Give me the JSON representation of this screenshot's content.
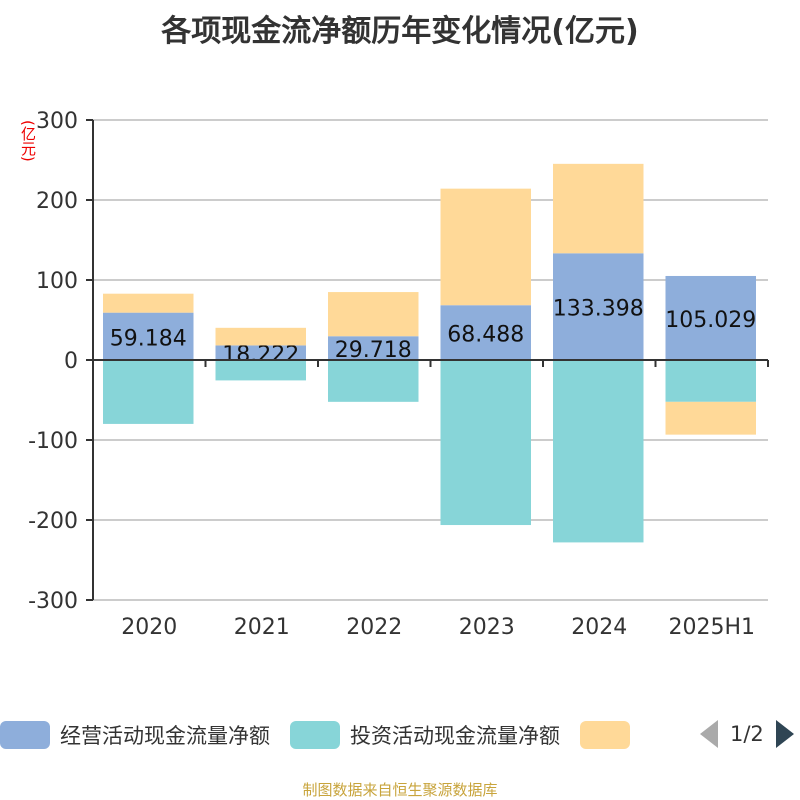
{
  "title": "各项现金流净额历年变化情况(亿元)",
  "footer": "制图数据来自恒生聚源数据库",
  "legend": {
    "page": "1/2"
  },
  "chart_data": {
    "type": "bar",
    "stacked": true,
    "title": "各项现金流净额历年变化情况(亿元)",
    "ylabel": "(亿元)",
    "ylim": [
      -300,
      300
    ],
    "yticks": [
      300,
      200,
      100,
      0,
      -100,
      -200,
      -300
    ],
    "categories": [
      "2020",
      "2021",
      "2022",
      "2023",
      "2024",
      "2025H1"
    ],
    "series": [
      {
        "name": "经营活动现金流量净额",
        "color": "#8eaedb",
        "values": [
          59.184,
          18.222,
          29.718,
          68.488,
          133.398,
          105.029
        ],
        "labels": true
      },
      {
        "name": "投资活动现金流量净额",
        "color": "#87d5d8",
        "values": [
          -79.9,
          -25.5,
          -52.3,
          -206.3,
          -228.0,
          -52.3
        ]
      },
      {
        "name": "",
        "color": "#ffd998",
        "values": [
          23.7,
          22.0,
          55.2,
          145.7,
          111.8,
          -41.0
        ]
      }
    ],
    "grid": true,
    "legend_position": "bottom"
  }
}
